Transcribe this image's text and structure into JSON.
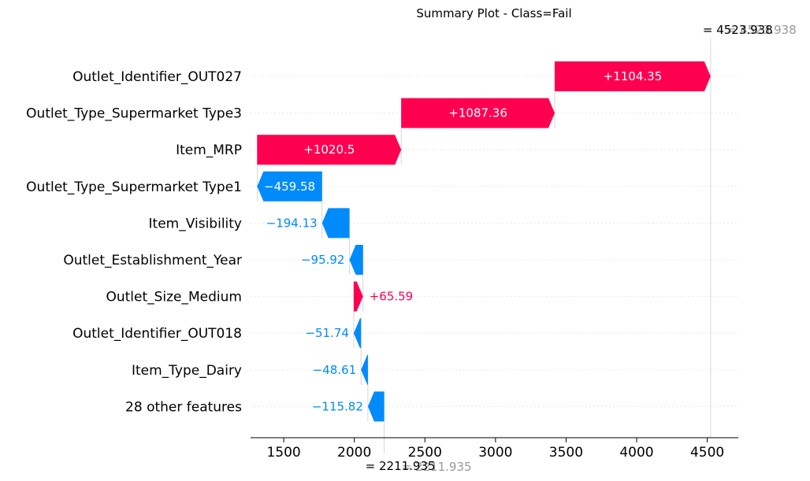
{
  "chart_data": {
    "type": "waterfall",
    "title": "Summary Plot - Class=Fail",
    "xlim": [
      1265,
      4720
    ],
    "x_ticks": [
      1500,
      2000,
      2500,
      3000,
      3500,
      4000,
      4500
    ],
    "x_tick_labels": [
      "1500",
      "2000",
      "2500",
      "3000",
      "3500",
      "4000",
      "4500"
    ],
    "base_value": 2211.935,
    "base_label": "= 2211.935",
    "base_label_gray": "= 2211.935",
    "final_value": 4523.938,
    "final_label": "= 4523.938",
    "final_label_gray": "= 4523.938",
    "features": [
      {
        "name": "Outlet_Identifier_OUT027",
        "contribution": 1104.35,
        "label": "+1104.35",
        "label_inside": true
      },
      {
        "name": "Outlet_Type_Supermarket Type3",
        "contribution": 1087.36,
        "label": "+1087.36",
        "label_inside": true
      },
      {
        "name": "Item_MRP",
        "contribution": 1020.5,
        "label": "+1020.5",
        "label_inside": true
      },
      {
        "name": "Outlet_Type_Supermarket Type1",
        "contribution": -459.58,
        "label": "−459.58",
        "label_inside": true
      },
      {
        "name": "Item_Visibility",
        "contribution": -194.13,
        "label": "−194.13",
        "label_inside": false
      },
      {
        "name": "Outlet_Establishment_Year",
        "contribution": -95.92,
        "label": "−95.92",
        "label_inside": false
      },
      {
        "name": "Outlet_Size_Medium",
        "contribution": 65.59,
        "label": "+65.59",
        "label_inside": false
      },
      {
        "name": "Outlet_Identifier_OUT018",
        "contribution": -51.74,
        "label": "−51.74",
        "label_inside": false
      },
      {
        "name": "Item_Type_Dairy",
        "contribution": -48.61,
        "label": "−48.61",
        "label_inside": false
      },
      {
        "name": "28 other features",
        "contribution": -115.82,
        "label": "−115.82",
        "label_inside": false
      }
    ],
    "colors": {
      "positive": "#ff0051",
      "negative": "#008bfb",
      "grid": "#cccccc"
    }
  }
}
